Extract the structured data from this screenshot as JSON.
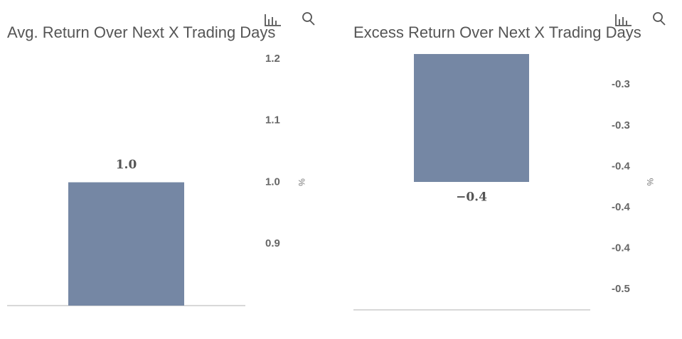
{
  "chart_data": [
    {
      "type": "bar",
      "title": "Avg. Return Over Next X Trading Days",
      "ylabel": "%",
      "values": [
        1.0
      ],
      "value_labels": [
        "1.0"
      ],
      "color": "#7587a4",
      "ylim": [
        0.8,
        1.2
      ],
      "yticks": [
        0.9,
        {
          "value": 1.0,
          "label": "1.0"
        },
        1.1,
        1.2
      ],
      "y_axis_side": "right"
    },
    {
      "type": "bar",
      "title": "Excess Return Over Next X Trading Days",
      "ylabel": "%",
      "values": [
        -0.375
      ],
      "value_labels": [
        "−0.4"
      ],
      "color": "#7587a4",
      "ylim": [
        -0.5,
        -0.25
      ],
      "yticks": [
        {
          "value": -0.48,
          "label": "-0.5"
        },
        {
          "value": -0.44,
          "label": "-0.4"
        },
        {
          "value": -0.4,
          "label": "-0.4"
        },
        {
          "value": -0.36,
          "label": "-0.4"
        },
        {
          "value": -0.32,
          "label": "-0.3"
        },
        {
          "value": -0.28,
          "label": "-0.3"
        }
      ],
      "y_axis_side": "right"
    }
  ]
}
